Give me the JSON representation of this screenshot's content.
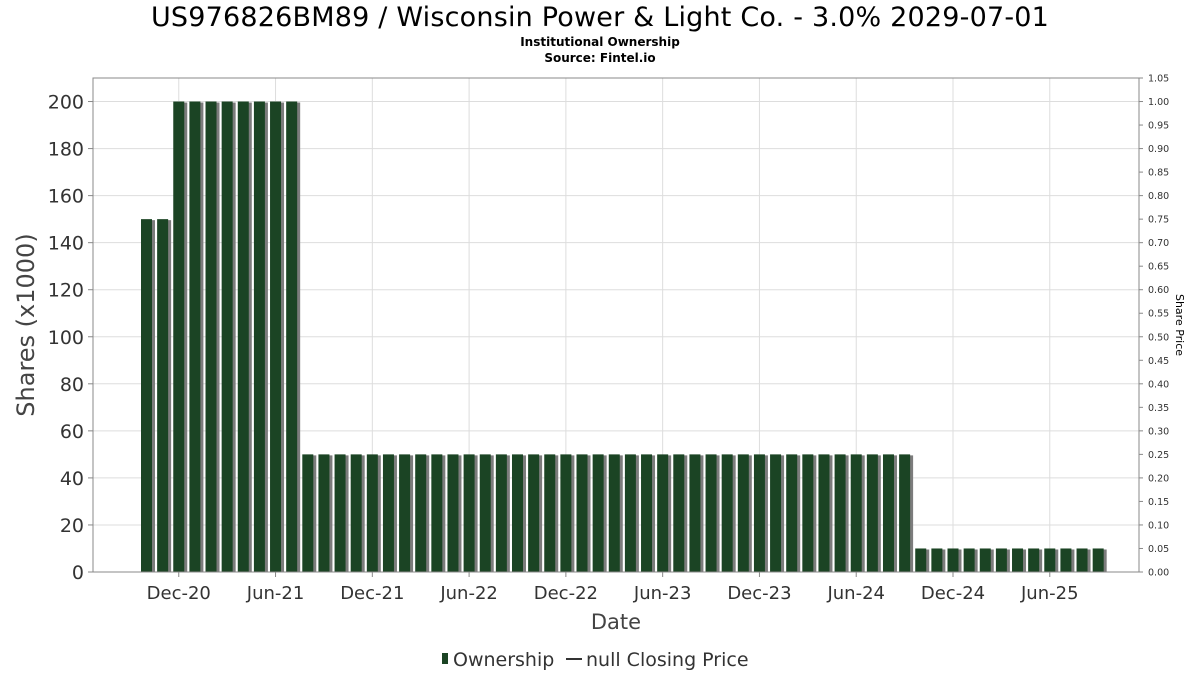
{
  "title": "US976826BM89 / Wisconsin Power & Light Co. - 3.0% 2029-07-01",
  "subtitle": "Institutional Ownership",
  "source": "Source: Fintel.io",
  "colors": {
    "bar": "#1b4424",
    "bar_shadow": "#7c7c7c",
    "grid": "#dddddd",
    "axis": "#888888"
  },
  "chart_data": {
    "type": "bar",
    "xlabel": "Date",
    "ylabel": "Shares (x1000)",
    "y2label": "Share Price",
    "ylim": [
      0,
      210
    ],
    "y2lim": [
      0,
      1.05
    ],
    "yticks": [
      0,
      20,
      40,
      60,
      80,
      100,
      120,
      140,
      160,
      180,
      200
    ],
    "y2ticks": [
      "0.00",
      "0.05",
      "0.10",
      "0.15",
      "0.20",
      "0.25",
      "0.30",
      "0.35",
      "0.40",
      "0.45",
      "0.50",
      "0.55",
      "0.60",
      "0.65",
      "0.70",
      "0.75",
      "0.80",
      "0.85",
      "0.90",
      "0.95",
      "1.00",
      "1.05"
    ],
    "xtick_labels": [
      "Dec-20",
      "Jun-21",
      "Dec-21",
      "Jun-22",
      "Dec-22",
      "Jun-23",
      "Dec-23",
      "Jun-24",
      "Dec-24",
      "Jun-25"
    ],
    "grid": true,
    "legend_position": "bottom",
    "series": [
      {
        "name": "Ownership",
        "values": [
          150,
          150,
          200,
          200,
          200,
          200,
          200,
          200,
          200,
          200,
          50,
          50,
          50,
          50,
          50,
          50,
          50,
          50,
          50,
          50,
          50,
          50,
          50,
          50,
          50,
          50,
          50,
          50,
          50,
          50,
          50,
          50,
          50,
          50,
          50,
          50,
          50,
          50,
          50,
          50,
          50,
          50,
          50,
          50,
          50,
          50,
          50,
          50,
          10,
          10,
          10,
          10,
          10,
          10,
          10,
          10,
          10,
          10,
          10,
          10
        ]
      }
    ],
    "legend": [
      {
        "label": "Ownership",
        "kind": "bar"
      },
      {
        "label": "null Closing Price",
        "kind": "line"
      }
    ]
  }
}
